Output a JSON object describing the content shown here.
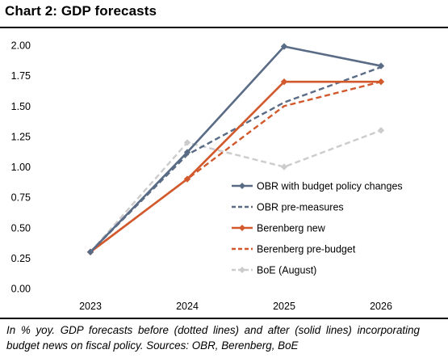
{
  "title": "Chart 2: GDP forecasts",
  "note": "In % yoy. GDP forecasts before (dotted lines) and after (solid lines) incorporating budget news on fiscal policy. Sources: OBR, Berenberg, BoE",
  "chart_data": {
    "type": "line",
    "title": "Chart 2: GDP forecasts",
    "xlabel": "",
    "ylabel": "",
    "categories": [
      "2023",
      "2024",
      "2025",
      "2026"
    ],
    "ylim": [
      0,
      2
    ],
    "yticks": [
      "0.00",
      "0.25",
      "0.50",
      "0.75",
      "1.00",
      "1.25",
      "1.50",
      "1.75",
      "2.00"
    ],
    "grid": false,
    "legend_position": "right",
    "series": [
      {
        "name": "OBR with budget policy changes",
        "values": [
          0.3,
          1.12,
          1.99,
          1.83
        ],
        "color": "#5a6b85",
        "style": "solid",
        "marker": "diamond"
      },
      {
        "name": "OBR pre-measures",
        "values": [
          0.3,
          1.1,
          1.53,
          1.82
        ],
        "color": "#5a6b85",
        "style": "dashed",
        "marker": "none"
      },
      {
        "name": "Berenberg new",
        "values": [
          0.3,
          0.9,
          1.7,
          1.7
        ],
        "color": "#d2592c",
        "style": "solid",
        "marker": "diamond"
      },
      {
        "name": "Berenberg pre-budget",
        "values": [
          0.3,
          0.9,
          1.5,
          1.7
        ],
        "color": "#d2592c",
        "style": "dashed",
        "marker": "none"
      },
      {
        "name": "BoE (August)",
        "values": [
          0.3,
          1.2,
          1.0,
          1.3
        ],
        "color": "#cccccc",
        "style": "dashed",
        "marker": "diamond"
      }
    ]
  }
}
